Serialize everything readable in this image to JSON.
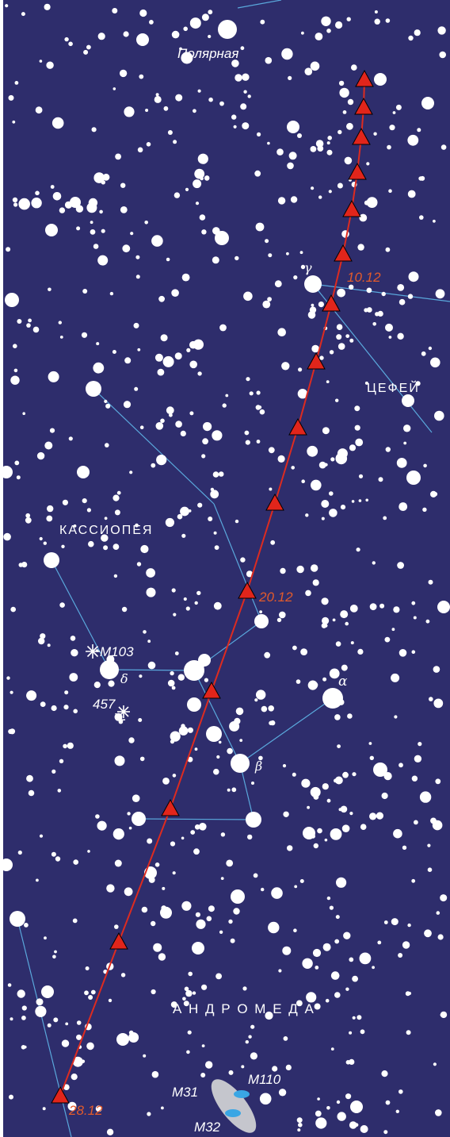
{
  "colors": {
    "sky": "#2e2d6c",
    "star": "#ffffff",
    "constellation_line": "#5aa8dc",
    "track": "#dd2b20",
    "marker": "#e1251b",
    "date_label": "#e25a2b",
    "galaxy": "#c5c6cd",
    "galaxy_core": "#3aa6e4"
  },
  "labels": {
    "polaris": "Полярная",
    "cepheus": "ЦЕФЕЙ",
    "cassiopeia": "КАССИОПЕЯ",
    "andromeda": "А Н Д Р О М Е Д А"
  },
  "greek": {
    "gamma": "γ",
    "delta": "δ",
    "alpha": "α",
    "beta": "β"
  },
  "objects": {
    "m103": "M103",
    "comet_457": "457",
    "m31": "M31",
    "m110": "M110",
    "m32": "M32"
  },
  "dates": {
    "d10": "10.12",
    "d20": "20.12",
    "d28": "28.12"
  },
  "icons": {
    "open_cluster": "asterisk-icon",
    "comet": "comet-icon",
    "track_marker": "triangle-icon"
  }
}
